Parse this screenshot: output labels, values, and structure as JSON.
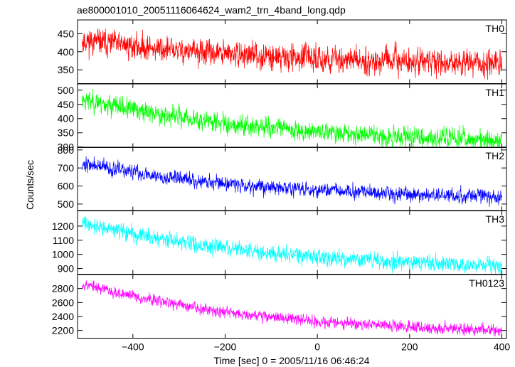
{
  "chart_data": {
    "type": "line",
    "title": "ae800001010_20051116064624_wam2_trn_4band_long.qdp",
    "xlabel": "Time [sec] 0 = 2005/11/16 06:46:24",
    "ylabel": "Counts/sec",
    "xlim": [
      -520,
      410
    ],
    "x_ticks": [
      -400,
      -200,
      0,
      200,
      400
    ],
    "x_tick_labels": [
      "−400",
      "−200",
      "0",
      "200",
      "400"
    ],
    "x_range": [
      -510,
      400
    ],
    "grid": false,
    "panels": [
      {
        "name": "TH0",
        "color": "#ff0000",
        "ylim": [
          312,
          488
        ],
        "y_ticks": [
          350,
          400,
          450
        ],
        "trend_start": 432,
        "trend_end": 368,
        "noise": 24,
        "seed": 11
      },
      {
        "name": "TH1",
        "color": "#00ff00",
        "ylim": [
          298,
          522
        ],
        "y_ticks": [
          300,
          350,
          400,
          450,
          500
        ],
        "trend_start": 470,
        "trend_end": 325,
        "noise": 24,
        "seed": 23
      },
      {
        "name": "TH2",
        "color": "#0000ff",
        "ylim": [
          462,
          815
        ],
        "y_ticks": [
          500,
          600,
          700,
          800
        ],
        "trend_start": 725,
        "trend_end": 540,
        "noise": 28,
        "seed": 37
      },
      {
        "name": "TH3",
        "color": "#00ffff",
        "ylim": [
          860,
          1310
        ],
        "y_ticks": [
          900,
          1000,
          1100,
          1200
        ],
        "trend_start": 1225,
        "trend_end": 920,
        "noise": 38,
        "seed": 41
      },
      {
        "name": "TH0123",
        "color": "#ff00ff",
        "ylim": [
          2090,
          3000
        ],
        "y_ticks": [
          2200,
          2400,
          2600,
          2800
        ],
        "trend_start": 2870,
        "trend_end": 2200,
        "noise": 55,
        "seed": 53
      }
    ]
  }
}
